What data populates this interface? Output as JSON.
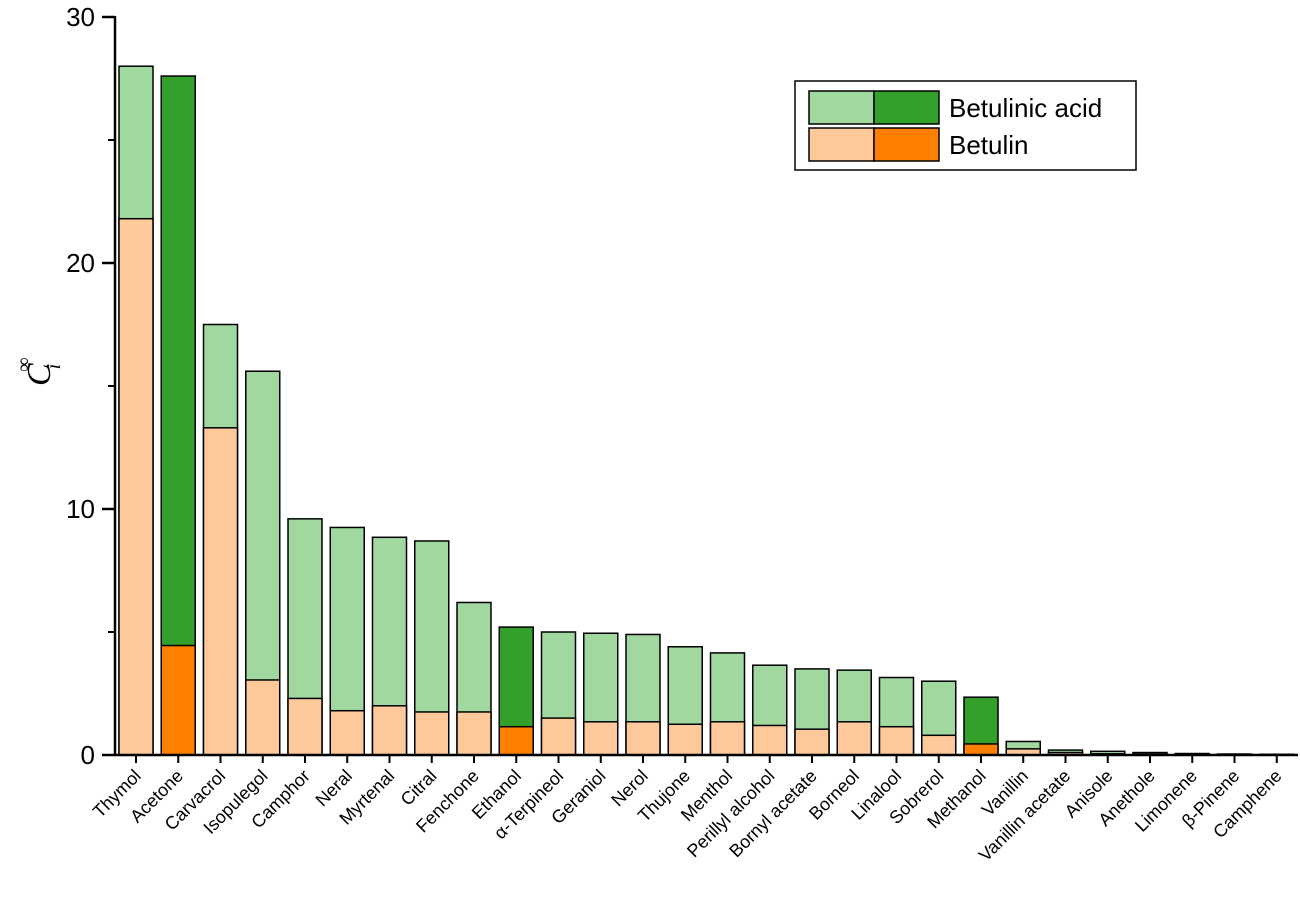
{
  "chart_data": {
    "type": "bar",
    "ylabel": "C",
    "ylabel_subscript": "i",
    "ylabel_superscript": "∞",
    "ylim": [
      0,
      30
    ],
    "yticks": [
      0,
      10,
      20,
      30
    ],
    "legend_position": "top-right",
    "categories": [
      "Thymol",
      "Acetone",
      "Carvacrol",
      "Isopulegol",
      "Camphor",
      "Neral",
      "Myrtenal",
      "Citral",
      "Fenchone",
      "Ethanol",
      "α-Terpineol",
      "Geraniol",
      "Nerol",
      "Thujone",
      "Menthol",
      "Perillyl alcohol",
      "Bornyl acetate",
      "Borneol",
      "Linalool",
      "Sobrerol",
      "Methanol",
      "Vanillin",
      "Vanillin acetate",
      "Anisole",
      "Anethole",
      "Limonene",
      "β-Pinene",
      "Camphene"
    ],
    "highlighted_categories": [
      "Acetone",
      "Ethanol",
      "Methanol"
    ],
    "series": [
      {
        "name": "Betulinic acid",
        "color": "#a0d8a0",
        "highlight_color": "#33a02c",
        "values": [
          28.0,
          27.6,
          17.5,
          15.6,
          9.6,
          9.25,
          8.85,
          8.7,
          6.2,
          5.2,
          5.0,
          4.95,
          4.9,
          4.4,
          4.15,
          3.65,
          3.5,
          3.45,
          3.15,
          3.0,
          2.35,
          0.55,
          0.2,
          0.15,
          0.1,
          0.06,
          0.04,
          0.03
        ]
      },
      {
        "name": "Betulin",
        "color": "#fdc99b",
        "highlight_color": "#ff7f00",
        "values": [
          21.8,
          4.45,
          13.3,
          3.05,
          2.3,
          1.8,
          2.0,
          1.75,
          1.75,
          1.15,
          1.5,
          1.35,
          1.35,
          1.25,
          1.35,
          1.2,
          1.05,
          1.35,
          1.15,
          0.8,
          0.45,
          0.25,
          0.1,
          0.05,
          0.04,
          0.02,
          0.01,
          0.01
        ]
      }
    ]
  }
}
